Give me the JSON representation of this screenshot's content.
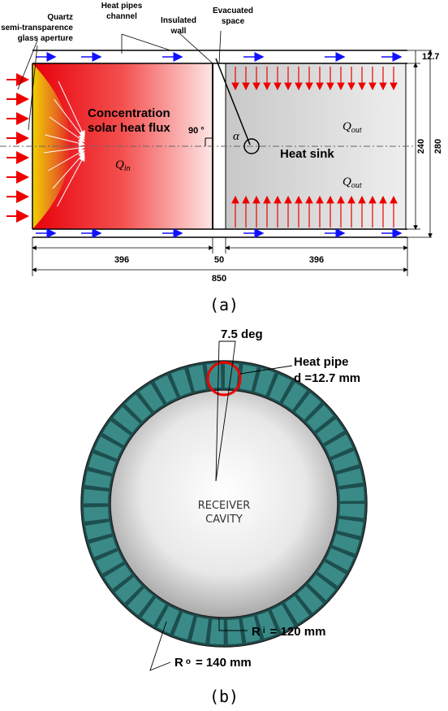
{
  "figure_a": {
    "labels": {
      "quartz": "Quartz",
      "semi": "semi-transparence",
      "glass": "glass aperture",
      "heat_pipes": "Heat pipes",
      "channel": "channel",
      "insulated": "Insulated",
      "wall": "wall",
      "evacuated": "Evacuated",
      "space": "space",
      "concentration": "Concentration",
      "solar": "solar heat flux",
      "angle": "90 °",
      "alpha": "α",
      "heat_sink": "Heat sink"
    },
    "q_in": {
      "symbol": "Q",
      "subscript": "in"
    },
    "q_out_top": {
      "symbol": "Q",
      "subscript": "out"
    },
    "q_out_bottom": {
      "symbol": "Q",
      "subscript": "out"
    },
    "dimensions": {
      "channel": 12.7,
      "inner_height": 240,
      "outer_height": 280,
      "left_length": 396,
      "gap": 50,
      "right_length": 396,
      "total_length": 850
    },
    "caption": "(a)"
  },
  "figure_b": {
    "angle": "7.5 deg",
    "heat_pipe": "Heat pipe",
    "diameter": "d =12.7 mm",
    "cavity_1": "RECEIVER",
    "cavity_2": "CAVITY",
    "r_inner": {
      "symbol": "R",
      "subscript": "i",
      "value": "= 120 mm"
    },
    "r_outer": {
      "symbol": "R",
      "subscript": "o",
      "value": "= 140 mm"
    },
    "caption": "(b)"
  }
}
